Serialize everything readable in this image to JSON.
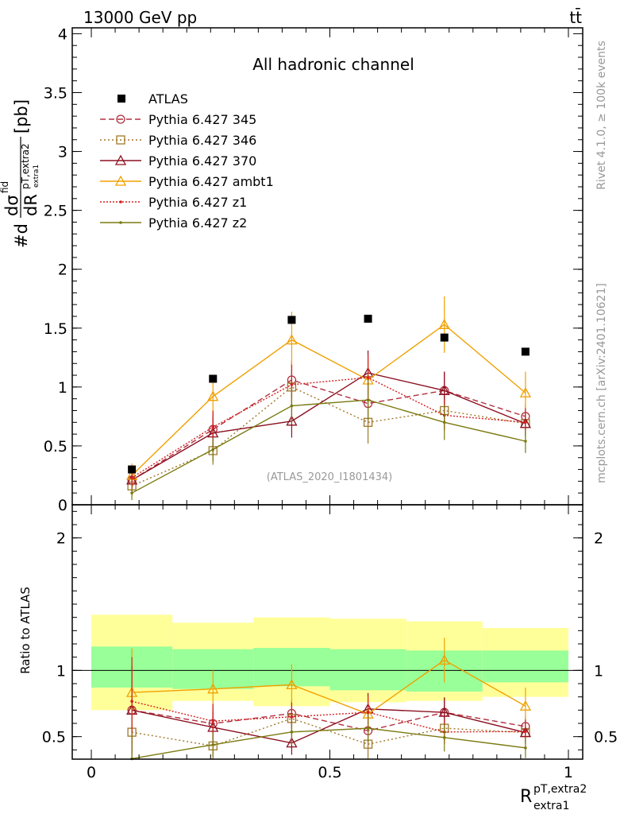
{
  "chart_data": {
    "type": "line",
    "header_left": "13000 GeV pp",
    "header_right": "tt̄",
    "title": "All hadronic channel",
    "watermark": "(ATLAS_2020_I1801434)",
    "side_label_top": "Rivet 4.1.0, ≥ 100k events",
    "side_label_bottom": "mcplots.cern.ch [arXiv:2401.10621]",
    "ylabel": "#d dσ^fid / dR^{pT,extra2}_{extra1} [pb]",
    "ylabel_parts": {
      "lead": "#d",
      "num": "dσ",
      "num_sup": "fid",
      "den": "dR",
      "den_sup": "pT,extra2",
      "den_sub": "extra1",
      "unit": "[pb]"
    },
    "ratio_ylabel": "Ratio to ATLAS",
    "xlabel": {
      "main": "R",
      "sup": "pT,extra2",
      "sub": "extra1"
    },
    "xlim": [
      -0.04,
      1.03
    ],
    "ylim": [
      0,
      4.05
    ],
    "ratio_ylim": [
      0.33,
      2.25
    ],
    "main_y_ticks": [
      {
        "v": 0,
        "label": "0"
      },
      {
        "v": 0.5,
        "label": "0.5"
      },
      {
        "v": 1,
        "label": "1"
      },
      {
        "v": 1.5,
        "label": "1.5"
      },
      {
        "v": 2,
        "label": "2"
      },
      {
        "v": 2.5,
        "label": "2.5"
      },
      {
        "v": 3,
        "label": "3"
      },
      {
        "v": 3.5,
        "label": "3.5"
      },
      {
        "v": 4,
        "label": "4"
      }
    ],
    "ratio_y_ticks": [
      {
        "v": 0.5,
        "label": "0.5"
      },
      {
        "v": 1,
        "label": "1"
      },
      {
        "v": 2,
        "label": "2"
      }
    ],
    "x_ticks": [
      {
        "v": 0,
        "label": "0"
      },
      {
        "v": 0.5,
        "label": "0.5"
      },
      {
        "v": 1,
        "label": "1"
      }
    ],
    "bins": [
      [
        0,
        0.17
      ],
      [
        0.17,
        0.34
      ],
      [
        0.34,
        0.5
      ],
      [
        0.5,
        0.66
      ],
      [
        0.66,
        0.82
      ],
      [
        0.82,
        1.0
      ]
    ],
    "x": [
      0.085,
      0.255,
      0.42,
      0.58,
      0.74,
      0.91
    ],
    "data": {
      "name": "ATLAS",
      "values": [
        0.3,
        1.07,
        1.57,
        1.58,
        1.42,
        1.3
      ],
      "band_inner": [
        [
          0.87,
          1.18
        ],
        [
          0.86,
          1.16
        ],
        [
          0.88,
          1.17
        ],
        [
          0.85,
          1.16
        ],
        [
          0.84,
          1.15
        ],
        [
          0.91,
          1.15
        ]
      ],
      "band_outer": [
        [
          0.7,
          1.42
        ],
        [
          0.77,
          1.36
        ],
        [
          0.73,
          1.4
        ],
        [
          0.76,
          1.39
        ],
        [
          0.77,
          1.37
        ],
        [
          0.8,
          1.32
        ]
      ]
    },
    "series": [
      {
        "name": "Pythia 6.427 345",
        "color": "#b0303e",
        "dash": "7,4",
        "marker": "circle",
        "values": [
          0.21,
          0.64,
          1.06,
          0.86,
          0.97,
          0.75
        ],
        "errors": [
          0.1,
          0.13,
          0.16,
          0.18,
          0.16,
          0.1
        ]
      },
      {
        "name": "Pythia 6.427 346",
        "color": "#a07828",
        "dash": "2,3",
        "marker": "square",
        "values": [
          0.16,
          0.46,
          1.0,
          0.7,
          0.8,
          0.69
        ],
        "errors": [
          0.08,
          0.12,
          0.15,
          0.18,
          0.15,
          0.12
        ]
      },
      {
        "name": "Pythia 6.427 370",
        "color": "#8c1020",
        "dash": "",
        "marker": "triangle",
        "values": [
          0.21,
          0.61,
          0.71,
          1.12,
          0.97,
          0.69
        ],
        "errors": [
          0.1,
          0.13,
          0.14,
          0.19,
          0.16,
          0.1
        ]
      },
      {
        "name": "Pythia 6.427 ambt1",
        "color": "#f0a000",
        "dash": "",
        "marker": "triangle",
        "values": [
          0.25,
          0.92,
          1.4,
          1.06,
          1.53,
          0.95
        ],
        "errors": [
          0.1,
          0.15,
          0.24,
          0.18,
          0.24,
          0.18
        ]
      },
      {
        "name": "Pythia 6.427 z1",
        "color": "#d42020",
        "dash": "2,2",
        "marker": "dot",
        "values": [
          0.23,
          0.66,
          1.02,
          1.08,
          0.76,
          0.7
        ],
        "errors": [
          0.1,
          0.14,
          0.17,
          0.19,
          0.13,
          0.12
        ]
      },
      {
        "name": "Pythia 6.427 z2",
        "color": "#7a7a10",
        "dash": "",
        "marker": "dot",
        "values": [
          0.1,
          0.47,
          0.84,
          0.89,
          0.7,
          0.54
        ],
        "errors": [
          0.06,
          0.1,
          0.15,
          0.17,
          0.15,
          0.1
        ]
      }
    ]
  }
}
